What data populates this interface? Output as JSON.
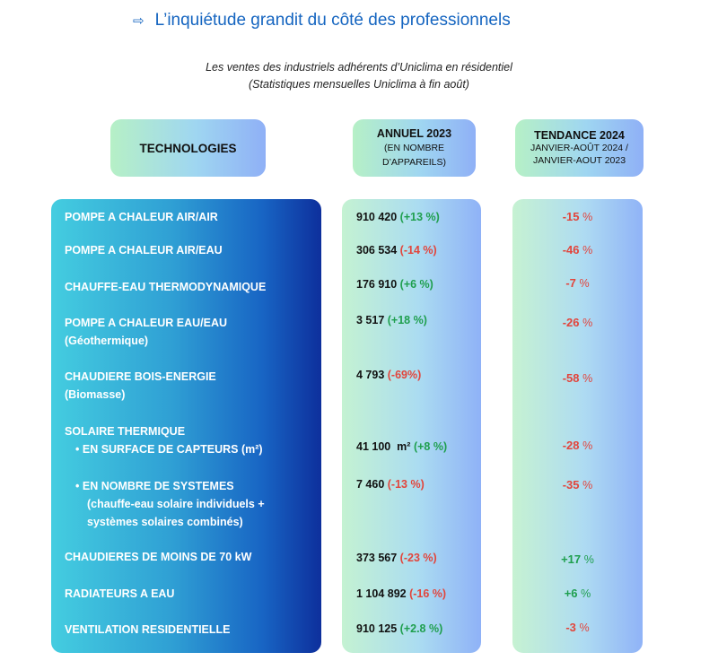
{
  "headline": {
    "arrow": "⇨",
    "text": "L’inquiétude grandit du côté des professionnels"
  },
  "subtitle": {
    "line1": "Les ventes des industriels adhérents d’Uniclima en résidentiel",
    "line2": "(Statistiques mensuelles Uniclima à fin août)"
  },
  "headers": {
    "tech": "TECHNOLOGIES",
    "annuel_title": "ANNUEL 2023",
    "annuel_sub1": "(EN NOMBRE",
    "annuel_sub2": "D’APPAREILS)",
    "tend_title": "TENDANCE 2024",
    "tend_sub1": "JANVIER-AOÛT 2024 /",
    "tend_sub2": "JANVIER-AOUT 2023"
  },
  "colors": {
    "positive": "#1f9f4e",
    "negative": "#e2453c",
    "title": "#1565c0"
  },
  "rows": [
    {
      "tech": "POMPE A CHALEUR AIR/AIR",
      "value": "910 420",
      "change": "(+13 %)",
      "change_sign": "pos",
      "trend_num": "-15",
      "trend_pct": "%",
      "trend_sign": "neg"
    },
    {
      "tech": "POMPE A CHALEUR AIR/EAU",
      "value": "306 534",
      "change": "(-14 %)",
      "change_sign": "neg",
      "trend_num": "-46",
      "trend_pct": "%",
      "trend_sign": "neg"
    },
    {
      "tech": "CHAUFFE-EAU THERMODYNAMIQUE",
      "value": "176 910",
      "change": "(+6 %)",
      "change_sign": "pos",
      "trend_num": "-7",
      "trend_pct": "%",
      "trend_sign": "neg"
    },
    {
      "tech": "POMPE A CHALEUR EAU/EAU",
      "tech2": "(Géothermique)",
      "value": "3 517",
      "change": "(+18 %)",
      "change_sign": "pos",
      "trend_num": "-26",
      "trend_pct": "%",
      "trend_sign": "neg"
    },
    {
      "tech": "CHAUDIERE BOIS-ENERGIE",
      "tech2": "(Biomasse)",
      "value": "4 793",
      "change": "(-69%)",
      "change_sign": "neg",
      "trend_num": "-58",
      "trend_pct": "%",
      "trend_sign": "neg"
    },
    {
      "tech": "SOLAIRE THERMIQUE",
      "bullet": "EN SURFACE DE CAPTEURS (m²)",
      "value": "41 100  m²",
      "change": "(+8 %)",
      "change_sign": "pos",
      "trend_num": "-28",
      "trend_pct": "%",
      "trend_sign": "neg"
    },
    {
      "bullet": "EN NOMBRE DE SYSTEMES",
      "tech2": "(chauffe-eau solaire individuels +",
      "tech3": "systèmes solaires combinés)",
      "value": "7 460",
      "change": "(-13 %)",
      "change_sign": "neg",
      "trend_num": "-35",
      "trend_pct": "%",
      "trend_sign": "neg"
    },
    {
      "tech": "CHAUDIERES DE MOINS DE 70 kW",
      "value": "373 567",
      "change": "(-23 %)",
      "change_sign": "neg",
      "trend_num": "+17",
      "trend_pct": "%",
      "trend_sign": "pos"
    },
    {
      "tech": "RADIATEURS A EAU",
      "value": "1 104 892",
      "change": "(-16 %)",
      "change_sign": "neg",
      "trend_num": "+6",
      "trend_pct": "%",
      "trend_sign": "pos"
    },
    {
      "tech": "VENTILATION RESIDENTIELLE",
      "value": "910 125",
      "change": "(+2.8 %)",
      "change_sign": "pos",
      "trend_num": "-3",
      "trend_pct": "%",
      "trend_sign": "neg"
    }
  ]
}
